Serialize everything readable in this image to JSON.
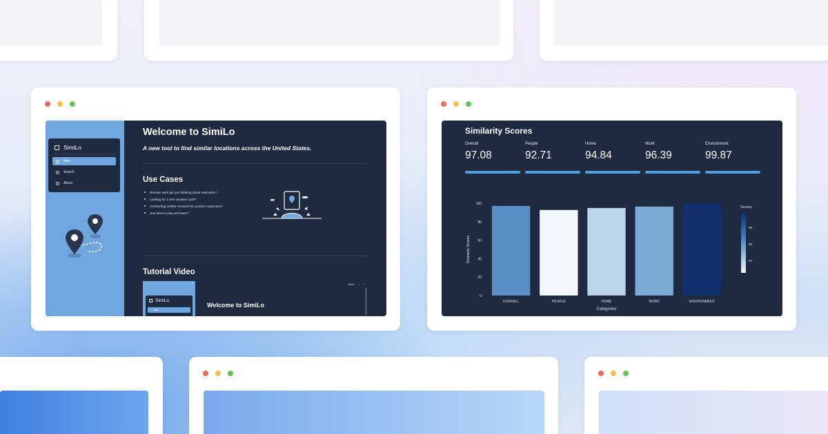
{
  "left_window": {
    "sidebar": {
      "app_name": "SimiLo",
      "items": [
        {
          "label": "Intro",
          "icon": "info-icon",
          "active": true
        },
        {
          "label": "Search",
          "icon": "search-icon",
          "active": false
        },
        {
          "label": "About",
          "icon": "about-icon",
          "active": false
        }
      ]
    },
    "title": "Welcome to SimiLo",
    "subtitle": "A new tool to find similar locations across the United States.",
    "use_cases_heading": "Use Cases",
    "use_cases": [
      "Remote work got you thinking about relocation?",
      "Looking for a new vacation spot?",
      "Conducting market research for product expansion?",
      "Just here to play and learn?"
    ],
    "tutorial_heading": "Tutorial Video",
    "video": {
      "app_name": "SimiLo",
      "menu_item": "Intro",
      "title": "Welcome to SimiLo",
      "toolbar_label": "Share"
    }
  },
  "right_window": {
    "title": "Similarity Scores",
    "metrics": [
      {
        "label": "Overall",
        "value": "97.08"
      },
      {
        "label": "People",
        "value": "92.71"
      },
      {
        "label": "Home",
        "value": "94.84"
      },
      {
        "label": "Work",
        "value": "96.39"
      },
      {
        "label": "Environment",
        "value": "99.87"
      }
    ]
  },
  "chart_data": {
    "type": "bar",
    "categories": [
      "OVERALL",
      "PEOPLE",
      "HOME",
      "WORK",
      "ENVIRONMENT"
    ],
    "values": [
      97.08,
      92.71,
      94.84,
      96.39,
      99.87
    ],
    "colors": [
      "#5b90c6",
      "#f3f6fb",
      "#bcd4ea",
      "#7aaad6",
      "#11306b"
    ],
    "xlabel": "Categories",
    "ylabel": "Similarity Scores",
    "ylim": [
      0,
      100
    ],
    "yticks": [
      0,
      20,
      40,
      60,
      80,
      100
    ],
    "colorbar": {
      "title": "Scores",
      "ticks": [
        "98",
        "96",
        "94"
      ]
    },
    "grid": false
  },
  "colors": {
    "app_bg": "#1e2a40",
    "sidebar_blue": "#6fa6de",
    "accent_bar": "#4e9de0"
  }
}
